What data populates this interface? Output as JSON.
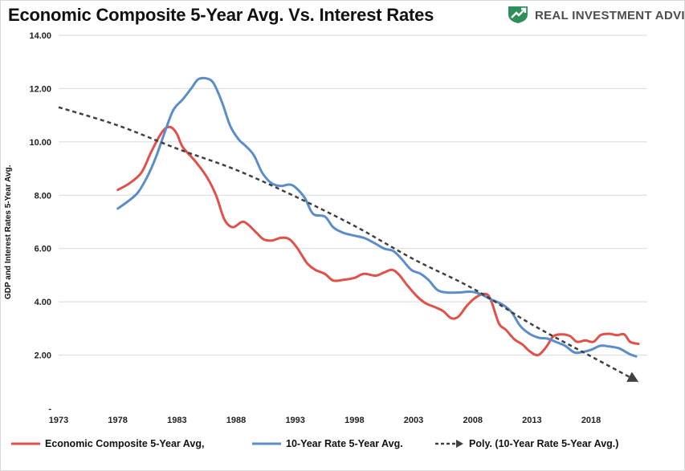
{
  "header": {
    "title": "Economic Composite 5-Year Avg. Vs. Interest Rates",
    "brand_name": "REAL INVESTMENT ADVICE",
    "brand_logo": "green-shield-arrow-icon"
  },
  "colors": {
    "economic": "#e0514a",
    "rate": "#5b8ec9",
    "trend": "#404040",
    "grid": "#d9d9d9",
    "brand_green": "#2f8f5b"
  },
  "chart_data": {
    "type": "line",
    "ylabel": "GDP and Interest Rates 5-Year Avg.",
    "xlabel": "",
    "xlim": [
      1973,
      2022
    ],
    "ylim": [
      0,
      14
    ],
    "x_ticks": [
      "1973",
      "1978",
      "1983",
      "1988",
      "1993",
      "1998",
      "2003",
      "2008",
      "2013",
      "2018"
    ],
    "y_ticks": [
      "-",
      "2.00",
      "4.00",
      "6.00",
      "8.00",
      "10.00",
      "12.00",
      "14.00"
    ],
    "grid": "horizontal",
    "legend_position": "bottom",
    "series": [
      {
        "name": "Economic Composite 5-Year Avg,",
        "style": "solid",
        "color": "#e0514a",
        "points": [
          [
            1978,
            8.2
          ],
          [
            1979,
            8.45
          ],
          [
            1980,
            8.85
          ],
          [
            1980.8,
            9.6
          ],
          [
            1981.5,
            10.2
          ],
          [
            1982,
            10.5
          ],
          [
            1982.5,
            10.55
          ],
          [
            1983,
            10.3
          ],
          [
            1983.5,
            9.8
          ],
          [
            1984.5,
            9.3
          ],
          [
            1985.5,
            8.7
          ],
          [
            1986.3,
            8.0
          ],
          [
            1987,
            7.1
          ],
          [
            1987.7,
            6.8
          ],
          [
            1988.5,
            7.0
          ],
          [
            1989,
            6.9
          ],
          [
            1989.7,
            6.6
          ],
          [
            1990.3,
            6.35
          ],
          [
            1991,
            6.3
          ],
          [
            1991.8,
            6.4
          ],
          [
            1992.5,
            6.35
          ],
          [
            1993.2,
            6.0
          ],
          [
            1994,
            5.45
          ],
          [
            1994.7,
            5.2
          ],
          [
            1995.5,
            5.05
          ],
          [
            1996.2,
            4.8
          ],
          [
            1997,
            4.82
          ],
          [
            1998,
            4.9
          ],
          [
            1998.8,
            5.05
          ],
          [
            1999.8,
            4.98
          ],
          [
            2000.5,
            5.1
          ],
          [
            2001.2,
            5.2
          ],
          [
            2001.8,
            5.0
          ],
          [
            2002.5,
            4.6
          ],
          [
            2003.3,
            4.2
          ],
          [
            2004,
            3.95
          ],
          [
            2004.8,
            3.8
          ],
          [
            2005.5,
            3.65
          ],
          [
            2006.2,
            3.38
          ],
          [
            2006.8,
            3.45
          ],
          [
            2007.5,
            3.85
          ],
          [
            2008.2,
            4.15
          ],
          [
            2009,
            4.3
          ],
          [
            2009.5,
            4.1
          ],
          [
            2010.2,
            3.2
          ],
          [
            2010.8,
            2.95
          ],
          [
            2011.5,
            2.6
          ],
          [
            2012.2,
            2.4
          ],
          [
            2012.8,
            2.15
          ],
          [
            2013.5,
            2.0
          ],
          [
            2014.2,
            2.3
          ],
          [
            2014.8,
            2.7
          ],
          [
            2015.5,
            2.78
          ],
          [
            2016.2,
            2.72
          ],
          [
            2016.8,
            2.5
          ],
          [
            2017.5,
            2.55
          ],
          [
            2018.2,
            2.5
          ],
          [
            2018.8,
            2.75
          ],
          [
            2019.5,
            2.8
          ],
          [
            2020.2,
            2.75
          ],
          [
            2020.8,
            2.78
          ],
          [
            2021.3,
            2.5
          ],
          [
            2022,
            2.42
          ]
        ]
      },
      {
        "name": "10-Year Rate 5-Year Avg.",
        "style": "solid",
        "color": "#5b8ec9",
        "points": [
          [
            1978,
            7.5
          ],
          [
            1978.8,
            7.75
          ],
          [
            1979.7,
            8.1
          ],
          [
            1980.5,
            8.7
          ],
          [
            1981.2,
            9.4
          ],
          [
            1982,
            10.4
          ],
          [
            1982.7,
            11.2
          ],
          [
            1983.5,
            11.6
          ],
          [
            1984.2,
            12.0
          ],
          [
            1984.8,
            12.35
          ],
          [
            1985.5,
            12.38
          ],
          [
            1986.1,
            12.2
          ],
          [
            1986.8,
            11.5
          ],
          [
            1987.5,
            10.6
          ],
          [
            1988.2,
            10.1
          ],
          [
            1988.8,
            9.85
          ],
          [
            1989.5,
            9.5
          ],
          [
            1990.2,
            8.85
          ],
          [
            1991,
            8.45
          ],
          [
            1991.8,
            8.35
          ],
          [
            1992.5,
            8.4
          ],
          [
            1993,
            8.3
          ],
          [
            1993.8,
            7.9
          ],
          [
            1994.5,
            7.3
          ],
          [
            1995.5,
            7.2
          ],
          [
            1996.2,
            6.8
          ],
          [
            1997,
            6.6
          ],
          [
            1997.8,
            6.5
          ],
          [
            1998.8,
            6.4
          ],
          [
            1999.7,
            6.2
          ],
          [
            2000.5,
            6.0
          ],
          [
            2001.3,
            5.9
          ],
          [
            2002,
            5.6
          ],
          [
            2002.8,
            5.2
          ],
          [
            2003.6,
            5.05
          ],
          [
            2004.3,
            4.8
          ],
          [
            2005,
            4.45
          ],
          [
            2005.8,
            4.35
          ],
          [
            2006.8,
            4.35
          ],
          [
            2007.8,
            4.38
          ],
          [
            2008.6,
            4.3
          ],
          [
            2009.5,
            4.1
          ],
          [
            2010.5,
            3.9
          ],
          [
            2011.3,
            3.6
          ],
          [
            2012,
            3.1
          ],
          [
            2012.8,
            2.8
          ],
          [
            2013.6,
            2.65
          ],
          [
            2014.3,
            2.62
          ],
          [
            2015,
            2.5
          ],
          [
            2015.8,
            2.35
          ],
          [
            2016.6,
            2.1
          ],
          [
            2017.3,
            2.12
          ],
          [
            2018,
            2.2
          ],
          [
            2018.8,
            2.35
          ],
          [
            2019.6,
            2.32
          ],
          [
            2020.4,
            2.25
          ],
          [
            2021.2,
            2.05
          ],
          [
            2021.8,
            1.95
          ]
        ]
      },
      {
        "name": "Poly. (10-Year Rate 5-Year Avg.)",
        "style": "dashed",
        "color": "#404040",
        "points": [
          [
            1973,
            11.3
          ],
          [
            1978,
            10.62
          ],
          [
            1983,
            9.75
          ],
          [
            1988,
            8.95
          ],
          [
            1993,
            7.95
          ],
          [
            1998,
            6.85
          ],
          [
            2003,
            5.6
          ],
          [
            2008,
            4.5
          ],
          [
            2013,
            3.15
          ],
          [
            2018,
            1.95
          ],
          [
            2022,
            1.0
          ]
        ]
      }
    ]
  }
}
